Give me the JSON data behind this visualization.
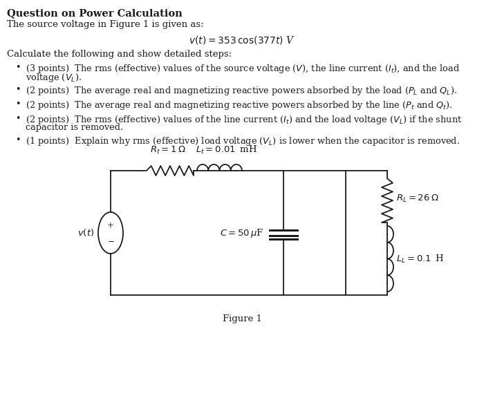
{
  "title": "Question on Power Calculation",
  "intro": "The source voltage in Figure 1 is given as:",
  "equation": "$v(t) = 353\\,\\cos(377t)$ V",
  "calc_intro": "Calculate the following and show detailed steps:",
  "bullet1_main": "(3 points)  The rms (effective) values of the source voltage ($V$), the line current ($I_t$), and the load",
  "bullet1_cont": "voltage ($V_L$).",
  "bullet2": "(2 points)  The average real and magnetizing reactive powers absorbed by the load ($P_L$ and $Q_L$).",
  "bullet3": "(2 points)  The average real and magnetizing reactive powers absorbed by the line ($P_t$ and $Q_t$).",
  "bullet4_main": "(2 points)  The rms (effective) values of the line current ($I_t$) and the load voltage ($V_L$) if the shunt",
  "bullet4_cont": "capacitor is removed.",
  "bullet5": "(1 points)  Explain why rms (effective) load voltage ($V_L$) is lower when the capacitor is removed.",
  "Rt_label": "$R_t = 1\\,\\Omega$",
  "Lt_label": "$L_t = 0.01\\,$ mH",
  "C_label": "$C = 50\\,\\mu$F",
  "RL_label": "$R_L = 26\\,\\Omega$",
  "LL_label": "$L_L = 0.1\\,$ H",
  "source_label": "$v(t)$",
  "figure_label": "Figure 1",
  "bg_color": "#ffffff",
  "text_color": "#1a1a1a",
  "line_color": "#1a1a1a"
}
